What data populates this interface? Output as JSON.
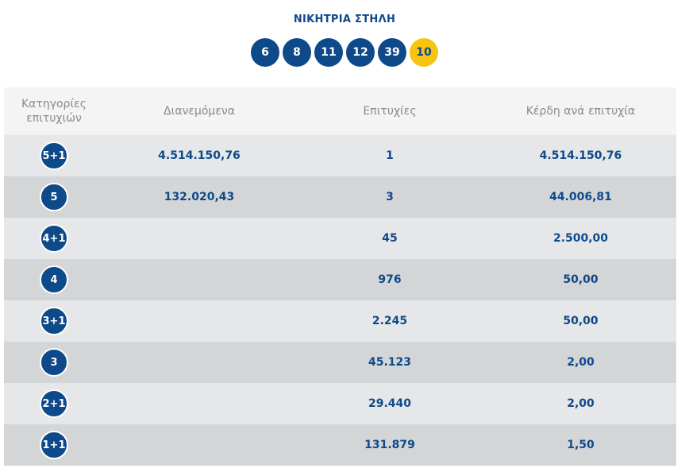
{
  "header": {
    "title": "ΝΙΚΗΤΡΙΑ ΣΤΗΛΗ",
    "numbers": [
      "6",
      "8",
      "11",
      "12",
      "39"
    ],
    "joker": "10",
    "colors": {
      "ball": "#0e4a8a",
      "joker": "#f6c512"
    }
  },
  "table": {
    "columns": [
      "Κατηγορίες επιτυχιών",
      "Διανεμόμενα",
      "Επιτυχίες",
      "Κέρδη ανά επιτυχία"
    ],
    "rows": [
      {
        "category": "5+1",
        "distributed": "4.514.150,76",
        "winners": "1",
        "prize": "4.514.150,76"
      },
      {
        "category": "5",
        "distributed": "132.020,43",
        "winners": "3",
        "prize": "44.006,81"
      },
      {
        "category": "4+1",
        "distributed": "",
        "winners": "45",
        "prize": "2.500,00"
      },
      {
        "category": "4",
        "distributed": "",
        "winners": "976",
        "prize": "50,00"
      },
      {
        "category": "3+1",
        "distributed": "",
        "winners": "2.245",
        "prize": "50,00"
      },
      {
        "category": "3",
        "distributed": "",
        "winners": "45.123",
        "prize": "2,00"
      },
      {
        "category": "2+1",
        "distributed": "",
        "winners": "29.440",
        "prize": "2,00"
      },
      {
        "category": "1+1",
        "distributed": "",
        "winners": "131.879",
        "prize": "1,50"
      }
    ]
  }
}
